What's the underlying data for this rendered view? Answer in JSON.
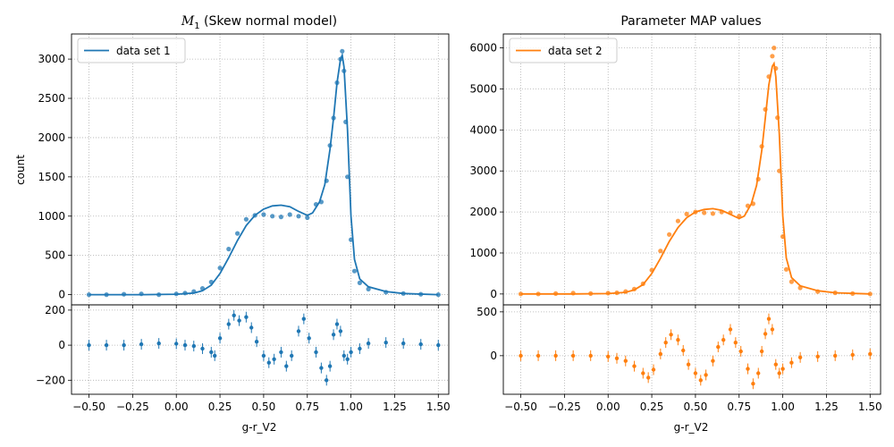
{
  "chart_data": [
    {
      "type": "scatter",
      "panel": "left-main",
      "title_math": "M",
      "title_sub": "1",
      "title_text": " (Skew normal model)",
      "ylabel": "count",
      "xlim": [
        -0.6,
        1.56
      ],
      "ylim": [
        -130,
        3320
      ],
      "yticks": [
        "0",
        "500",
        "1000",
        "1500",
        "2000",
        "2500",
        "3000"
      ],
      "ytick_values": [
        0,
        500,
        1000,
        1500,
        2000,
        2500,
        3000
      ],
      "grid": true,
      "legend": {
        "position": "top-left",
        "entries": [
          "data set 1"
        ]
      },
      "color": "#1f77b4",
      "model_curve": {
        "x": [
          -0.5,
          -0.2,
          0.0,
          0.1,
          0.15,
          0.2,
          0.25,
          0.3,
          0.35,
          0.4,
          0.45,
          0.5,
          0.55,
          0.6,
          0.65,
          0.7,
          0.75,
          0.78,
          0.82,
          0.85,
          0.88,
          0.9,
          0.92,
          0.94,
          0.95,
          0.96,
          0.98,
          1.0,
          1.02,
          1.05,
          1.1,
          1.2,
          1.3,
          1.5
        ],
        "y": [
          0,
          0,
          5,
          20,
          50,
          120,
          270,
          470,
          690,
          880,
          1010,
          1090,
          1130,
          1140,
          1120,
          1060,
          1010,
          1040,
          1180,
          1400,
          1850,
          2250,
          2700,
          3000,
          3050,
          2900,
          2100,
          1000,
          450,
          200,
          100,
          40,
          15,
          0
        ]
      },
      "points": {
        "x": [
          -0.5,
          -0.4,
          -0.3,
          -0.2,
          -0.1,
          0.0,
          0.05,
          0.1,
          0.15,
          0.2,
          0.25,
          0.3,
          0.35,
          0.4,
          0.45,
          0.5,
          0.55,
          0.6,
          0.65,
          0.7,
          0.75,
          0.8,
          0.83,
          0.86,
          0.88,
          0.9,
          0.92,
          0.94,
          0.95,
          0.96,
          0.97,
          0.98,
          1.0,
          1.02,
          1.05,
          1.1,
          1.2,
          1.3,
          1.4,
          1.5
        ],
        "y": [
          0,
          0,
          5,
          10,
          0,
          10,
          20,
          40,
          80,
          160,
          340,
          580,
          780,
          960,
          1010,
          1020,
          1000,
          990,
          1020,
          1000,
          980,
          1150,
          1180,
          1450,
          1900,
          2250,
          2700,
          3000,
          3100,
          2850,
          2200,
          1500,
          700,
          300,
          150,
          70,
          30,
          15,
          5,
          0
        ]
      }
    },
    {
      "type": "scatter",
      "panel": "left-residual",
      "xlabel": "g-r_V2",
      "xlim": [
        -0.6,
        1.56
      ],
      "ylim": [
        -280,
        230
      ],
      "yticks": [
        "−200",
        "0",
        "200"
      ],
      "ytick_values": [
        -200,
        0,
        200
      ],
      "xticks": [
        "−0.50",
        "−0.25",
        "0.00",
        "0.25",
        "0.50",
        "0.75",
        "1.00",
        "1.25",
        "1.50"
      ],
      "xtick_values": [
        -0.5,
        -0.25,
        0.0,
        0.25,
        0.5,
        0.75,
        1.0,
        1.25,
        1.5
      ],
      "grid": true,
      "color": "#1f77b4",
      "residuals": {
        "x": [
          -0.5,
          -0.4,
          -0.3,
          -0.2,
          -0.1,
          0.0,
          0.05,
          0.1,
          0.15,
          0.2,
          0.22,
          0.25,
          0.3,
          0.33,
          0.36,
          0.4,
          0.43,
          0.46,
          0.5,
          0.53,
          0.56,
          0.6,
          0.63,
          0.66,
          0.7,
          0.73,
          0.76,
          0.8,
          0.83,
          0.86,
          0.88,
          0.9,
          0.92,
          0.94,
          0.96,
          0.98,
          1.0,
          1.05,
          1.1,
          1.2,
          1.3,
          1.4,
          1.5
        ],
        "y": [
          0,
          0,
          0,
          5,
          10,
          8,
          0,
          -5,
          -20,
          -40,
          -60,
          40,
          120,
          170,
          140,
          160,
          100,
          20,
          -60,
          -100,
          -80,
          -40,
          -120,
          -60,
          80,
          150,
          40,
          -40,
          -130,
          -200,
          -120,
          60,
          120,
          80,
          -60,
          -80,
          -40,
          -20,
          10,
          15,
          10,
          5,
          0
        ]
      }
    },
    {
      "type": "scatter",
      "panel": "right-main",
      "title": "Parameter MAP values",
      "xlim": [
        -0.6,
        1.56
      ],
      "ylim": [
        -265,
        6340
      ],
      "yticks": [
        "0",
        "1000",
        "2000",
        "3000",
        "4000",
        "5000",
        "6000"
      ],
      "ytick_values": [
        0,
        1000,
        2000,
        3000,
        4000,
        5000,
        6000
      ],
      "grid": true,
      "legend": {
        "position": "top-left",
        "entries": [
          "data set 2"
        ]
      },
      "color": "#ff7f0e",
      "model_curve": {
        "x": [
          -0.5,
          -0.2,
          0.0,
          0.1,
          0.15,
          0.2,
          0.25,
          0.3,
          0.35,
          0.4,
          0.45,
          0.5,
          0.55,
          0.6,
          0.65,
          0.7,
          0.75,
          0.78,
          0.82,
          0.85,
          0.88,
          0.9,
          0.92,
          0.94,
          0.95,
          0.96,
          0.98,
          1.0,
          1.02,
          1.05,
          1.1,
          1.2,
          1.3,
          1.5
        ],
        "y": [
          0,
          0,
          10,
          40,
          100,
          230,
          500,
          870,
          1280,
          1620,
          1860,
          2000,
          2060,
          2080,
          2040,
          1940,
          1840,
          1900,
          2200,
          2650,
          3500,
          4300,
          5100,
          5550,
          5620,
          5300,
          3900,
          1900,
          880,
          400,
          200,
          80,
          30,
          0
        ]
      },
      "points": {
        "x": [
          -0.5,
          -0.4,
          -0.3,
          -0.2,
          -0.1,
          0.0,
          0.05,
          0.1,
          0.15,
          0.2,
          0.25,
          0.3,
          0.35,
          0.4,
          0.45,
          0.5,
          0.55,
          0.6,
          0.65,
          0.7,
          0.75,
          0.8,
          0.83,
          0.86,
          0.88,
          0.9,
          0.92,
          0.94,
          0.95,
          0.96,
          0.97,
          0.98,
          1.0,
          1.02,
          1.05,
          1.1,
          1.2,
          1.3,
          1.4,
          1.5
        ],
        "y": [
          0,
          0,
          10,
          20,
          10,
          20,
          30,
          60,
          120,
          250,
          580,
          1050,
          1450,
          1780,
          1950,
          2000,
          1980,
          1960,
          2000,
          1980,
          1900,
          2150,
          2200,
          2800,
          3600,
          4500,
          5300,
          5800,
          6000,
          5500,
          4300,
          3000,
          1400,
          600,
          300,
          150,
          60,
          30,
          10,
          0
        ]
      }
    },
    {
      "type": "scatter",
      "panel": "right-residual",
      "xlabel": "g-r_V2",
      "xlim": [
        -0.6,
        1.56
      ],
      "ylim": [
        -440,
        580
      ],
      "yticks": [
        "0",
        "500"
      ],
      "ytick_values": [
        0,
        500
      ],
      "xticks": [
        "−0.50",
        "−0.25",
        "0.00",
        "0.25",
        "0.50",
        "0.75",
        "1.00",
        "1.25",
        "1.50"
      ],
      "xtick_values": [
        -0.5,
        -0.25,
        0.0,
        0.25,
        0.5,
        0.75,
        1.0,
        1.25,
        1.5
      ],
      "grid": true,
      "color": "#ff7f0e",
      "residuals": {
        "x": [
          -0.5,
          -0.4,
          -0.3,
          -0.2,
          -0.1,
          0.0,
          0.05,
          0.1,
          0.15,
          0.2,
          0.23,
          0.26,
          0.3,
          0.33,
          0.36,
          0.4,
          0.43,
          0.46,
          0.5,
          0.53,
          0.56,
          0.6,
          0.63,
          0.66,
          0.7,
          0.73,
          0.76,
          0.8,
          0.83,
          0.86,
          0.88,
          0.9,
          0.92,
          0.94,
          0.96,
          0.98,
          1.0,
          1.05,
          1.1,
          1.2,
          1.3,
          1.4,
          1.5
        ],
        "y": [
          0,
          0,
          0,
          0,
          0,
          -10,
          -30,
          -60,
          -120,
          -200,
          -250,
          -160,
          20,
          150,
          240,
          180,
          60,
          -100,
          -200,
          -280,
          -220,
          -60,
          100,
          180,
          300,
          150,
          50,
          -150,
          -320,
          -200,
          50,
          250,
          420,
          300,
          -100,
          -200,
          -150,
          -80,
          -20,
          -10,
          0,
          10,
          20
        ]
      }
    }
  ]
}
